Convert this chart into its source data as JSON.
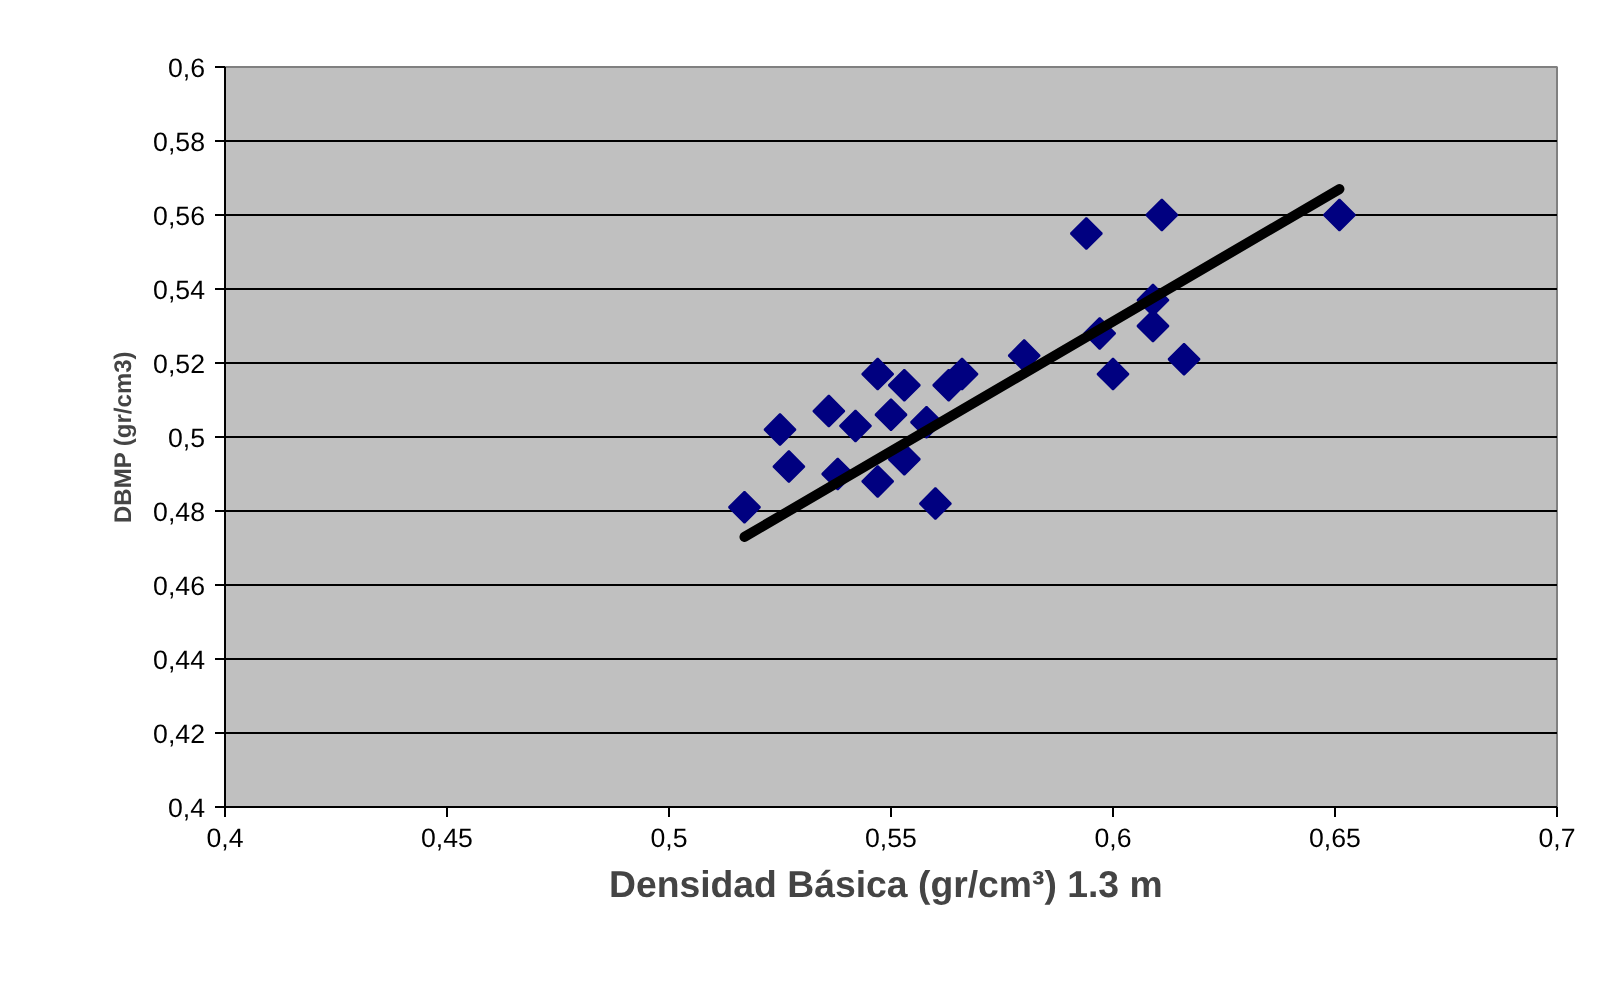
{
  "chart_data": {
    "type": "scatter",
    "xlabel": "Densidad Básica  (gr/cm³) 1.3 m",
    "ylabel": "DBMP (gr/cm3)",
    "xlim": [
      0.4,
      0.7
    ],
    "ylim": [
      0.4,
      0.6
    ],
    "xticks": [
      {
        "value": 0.4,
        "label": "0,4"
      },
      {
        "value": 0.45,
        "label": "0,45"
      },
      {
        "value": 0.5,
        "label": "0,5"
      },
      {
        "value": 0.55,
        "label": "0,55"
      },
      {
        "value": 0.6,
        "label": "0,6"
      },
      {
        "value": 0.65,
        "label": "0,65"
      },
      {
        "value": 0.7,
        "label": "0,7"
      }
    ],
    "yticks": [
      {
        "value": 0.4,
        "label": "0,4"
      },
      {
        "value": 0.42,
        "label": "0,42"
      },
      {
        "value": 0.44,
        "label": "0,44"
      },
      {
        "value": 0.46,
        "label": "0,46"
      },
      {
        "value": 0.48,
        "label": "0,48"
      },
      {
        "value": 0.5,
        "label": "0,5"
      },
      {
        "value": 0.52,
        "label": "0,52"
      },
      {
        "value": 0.54,
        "label": "0,54"
      },
      {
        "value": 0.56,
        "label": "0,56"
      },
      {
        "value": 0.58,
        "label": "0,58"
      },
      {
        "value": 0.6,
        "label": "0,6"
      }
    ],
    "grid": "y",
    "series": [
      {
        "marker": "diamond",
        "color": "#000080",
        "x": [
          0.517,
          0.525,
          0.527,
          0.536,
          0.538,
          0.542,
          0.547,
          0.547,
          0.55,
          0.553,
          0.553,
          0.558,
          0.56,
          0.563,
          0.566,
          0.58,
          0.594,
          0.597,
          0.6,
          0.609,
          0.609,
          0.611,
          0.616,
          0.651
        ],
        "values": [
          0.481,
          0.502,
          0.492,
          0.507,
          0.49,
          0.503,
          0.517,
          0.488,
          0.506,
          0.514,
          0.494,
          0.504,
          0.482,
          0.514,
          0.517,
          0.522,
          0.555,
          0.528,
          0.517,
          0.53,
          0.537,
          0.56,
          0.521,
          0.56
        ]
      },
      {
        "type": "line",
        "marker": "none",
        "color": "#000000",
        "x": [
          0.517,
          0.651
        ],
        "values": [
          0.473,
          0.567
        ]
      }
    ]
  }
}
